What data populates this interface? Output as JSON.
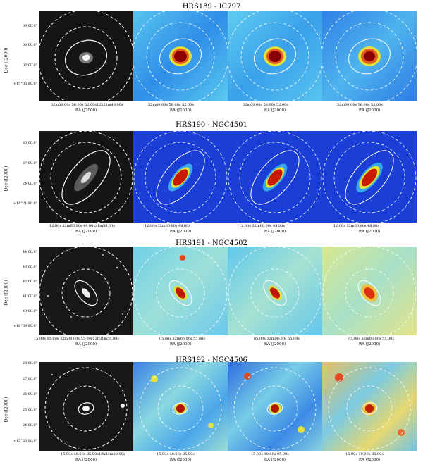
{
  "rows": [
    {
      "title": "HRS189 - IC797",
      "dec_label": "Dec (J2000)",
      "dec_ticks": [
        "09'00.0\"",
        "08'00.0\"",
        "07'00.0\"",
        "+15°06'00.0\""
      ],
      "ra_ticks": [
        "32m00.00s 56.00s    52.00s12h31m48.00s",
        "32m00.00s 56.00s    52.00s",
        "32m00.00s 56.00s    52.00s",
        "32m00.00s 56.00s    52.00s"
      ],
      "ra_label": "RA (J2000)"
    },
    {
      "title": "HRS190 - NGC4501",
      "dec_label": "Dec (J2000)",
      "dec_ticks": [
        "30'00.0\"",
        "27'00.0\"",
        "24'00.0\"",
        "+14°21'00.0\""
      ],
      "ra_ticks": [
        "12.00s  32m00.00s  48.00s31m36.00s",
        "12.00s  32m00.00s  48.00s",
        "12.00s  32m00.00s  48.00s",
        "12.00s  32m00.00s  48.00s"
      ],
      "ra_label": "RA (J2000)"
    },
    {
      "title": "HRS191 - NGC4502",
      "dec_label": "Dec (J2000)",
      "dec_ticks": [
        "44'00.0\"",
        "43'00.0\"",
        "42'00.0\"",
        "41'00.0\"",
        "40'00.0\"",
        "+16°39'00.0\""
      ],
      "ra_ticks": [
        "15.00s       05.00s 32m00.00s 55.00s12h31m50.00s",
        "05.00s 32m00.00s 55.00s",
        "05.00s 32m00.00s 55.00s",
        "05.00s 32m00.00s 55.00s"
      ],
      "ra_label": "RA (J2000)"
    },
    {
      "title": "HRS192 - NGC4506",
      "dec_label": "Dec (J2000)",
      "dec_ticks": [
        "28'00.0\"",
        "27'00.0\"",
        "26'00.0\"",
        "25'00.0\"",
        "24'00.0\"",
        "+13°23'00.0\""
      ],
      "ra_ticks": [
        "15.00s    10.00s    05.00s12h32m00.00s",
        "15.00s  10.00s    05.00s",
        "15.00s  10.00s    05.00s",
        "15.00s  10.00s    05.00s"
      ],
      "ra_label": "RA (J2000)"
    }
  ],
  "colors": {
    "optical_bg": "#141414",
    "map_bg": "#1a3fd8",
    "ellipse": "#ffffff"
  }
}
